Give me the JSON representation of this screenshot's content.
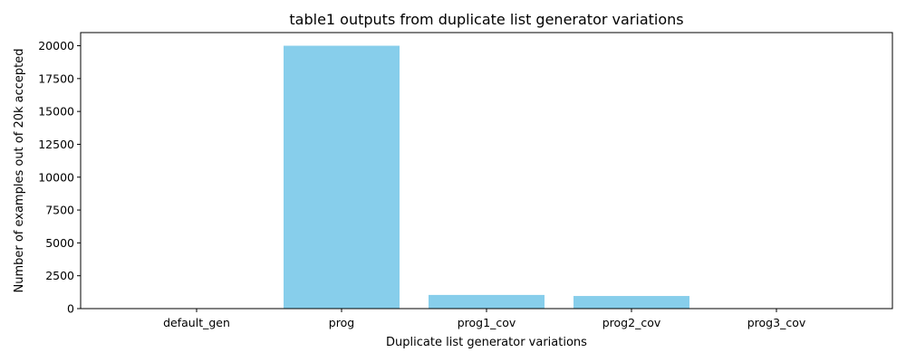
{
  "chart_data": {
    "type": "bar",
    "title": "table1 outputs from duplicate list generator variations",
    "xlabel": "Duplicate list generator variations",
    "ylabel": "Number of examples out of 20k accepted",
    "categories": [
      "default_gen",
      "prog",
      "prog1_cov",
      "prog2_cov",
      "prog3_cov"
    ],
    "values": [
      0,
      20000,
      1040,
      960,
      0
    ],
    "ylim": [
      0,
      21000
    ],
    "yticks": [
      0,
      2500,
      5000,
      7500,
      10000,
      12500,
      15000,
      17500,
      20000
    ],
    "bar_color": "#87ceeb",
    "grid": false
  }
}
